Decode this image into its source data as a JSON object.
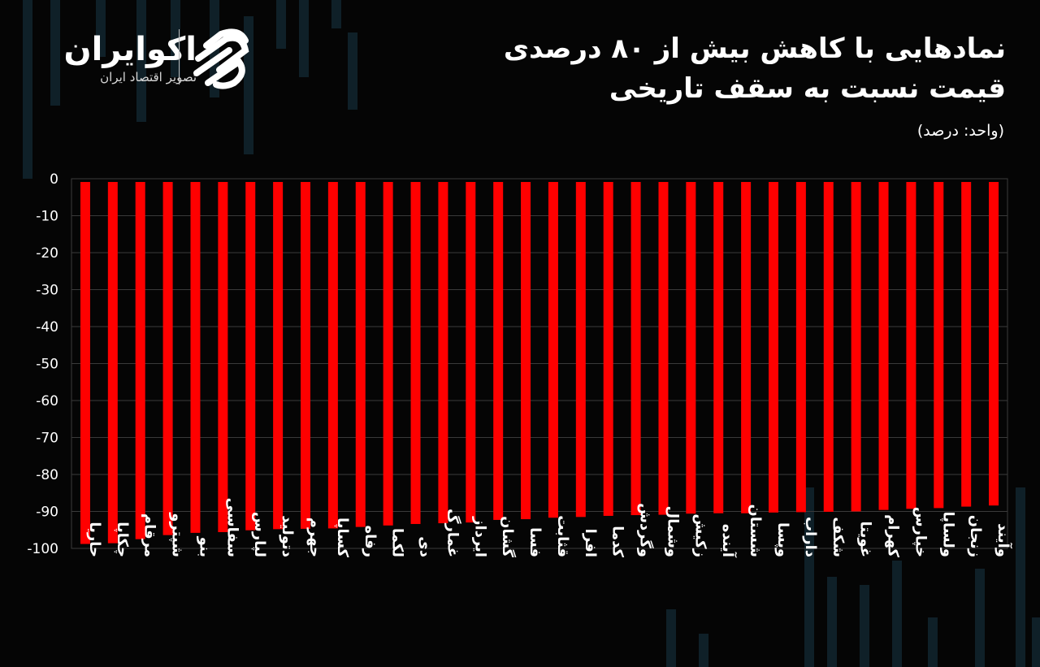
{
  "brand": {
    "name": "اکوایران",
    "tagline": "تصویر اقتصاد ایران"
  },
  "title_line1": "نمادهایی با کاهش بیش از ۸۰ درصدی",
  "title_line2": "قیمت نسبت به سقف تاریخی",
  "unit_label": "(واحد: درصد)",
  "colors": {
    "background": "#050505",
    "bar": "#ff0000",
    "grid": "#3a3a3a",
    "text": "#ffffff"
  },
  "chart_data": {
    "type": "bar",
    "orientation": "vertical, bars hanging down from zero",
    "title": "نمادهایی با کاهش بیش از ۸۰ درصدی قیمت نسبت به سقف تاریخی",
    "ylabel": "",
    "xlabel": "",
    "ylim": [
      -100,
      0
    ],
    "yticks": [
      0,
      -10,
      -20,
      -30,
      -40,
      -50,
      -60,
      -70,
      -80,
      -90,
      -100
    ],
    "ytick_labels": [
      "0",
      "-10",
      "-20",
      "-30",
      "-40",
      "-50",
      "-60",
      "-70",
      "-80",
      "-90",
      "-100"
    ],
    "grid": true,
    "categories": [
      "حاریا",
      "چکاپا",
      "مرقام",
      "شپترو",
      "بنو",
      "سفاسی",
      "لپارس",
      "دتولید",
      "جهرم",
      "کساپا",
      "رفاه",
      "لکما",
      "دی",
      "غمارگ",
      "ایرداز",
      "گشان",
      "فسا",
      "قثابت",
      "افرا",
      "کدما",
      "وگردش",
      "وشمال",
      "زکیش",
      "آینده",
      "شستان",
      "وپسا",
      "داراب",
      "شکف",
      "غویتا",
      "کهرام",
      "خپارس",
      "ولساپا",
      "زنجان",
      "وآیند"
    ],
    "values": [
      -98.8,
      -98.6,
      -97.5,
      -96.4,
      -95.8,
      -95.6,
      -95.1,
      -94.8,
      -94.7,
      -94.6,
      -94.2,
      -93.8,
      -93.4,
      -93.2,
      -93.0,
      -92.3,
      -92.1,
      -91.7,
      -91.5,
      -91.2,
      -91.0,
      -90.9,
      -90.6,
      -90.5,
      -90.5,
      -90.3,
      -90.2,
      -90.1,
      -90.0,
      -89.6,
      -89.3,
      -89.1,
      -88.7,
      -88.4
    ]
  }
}
